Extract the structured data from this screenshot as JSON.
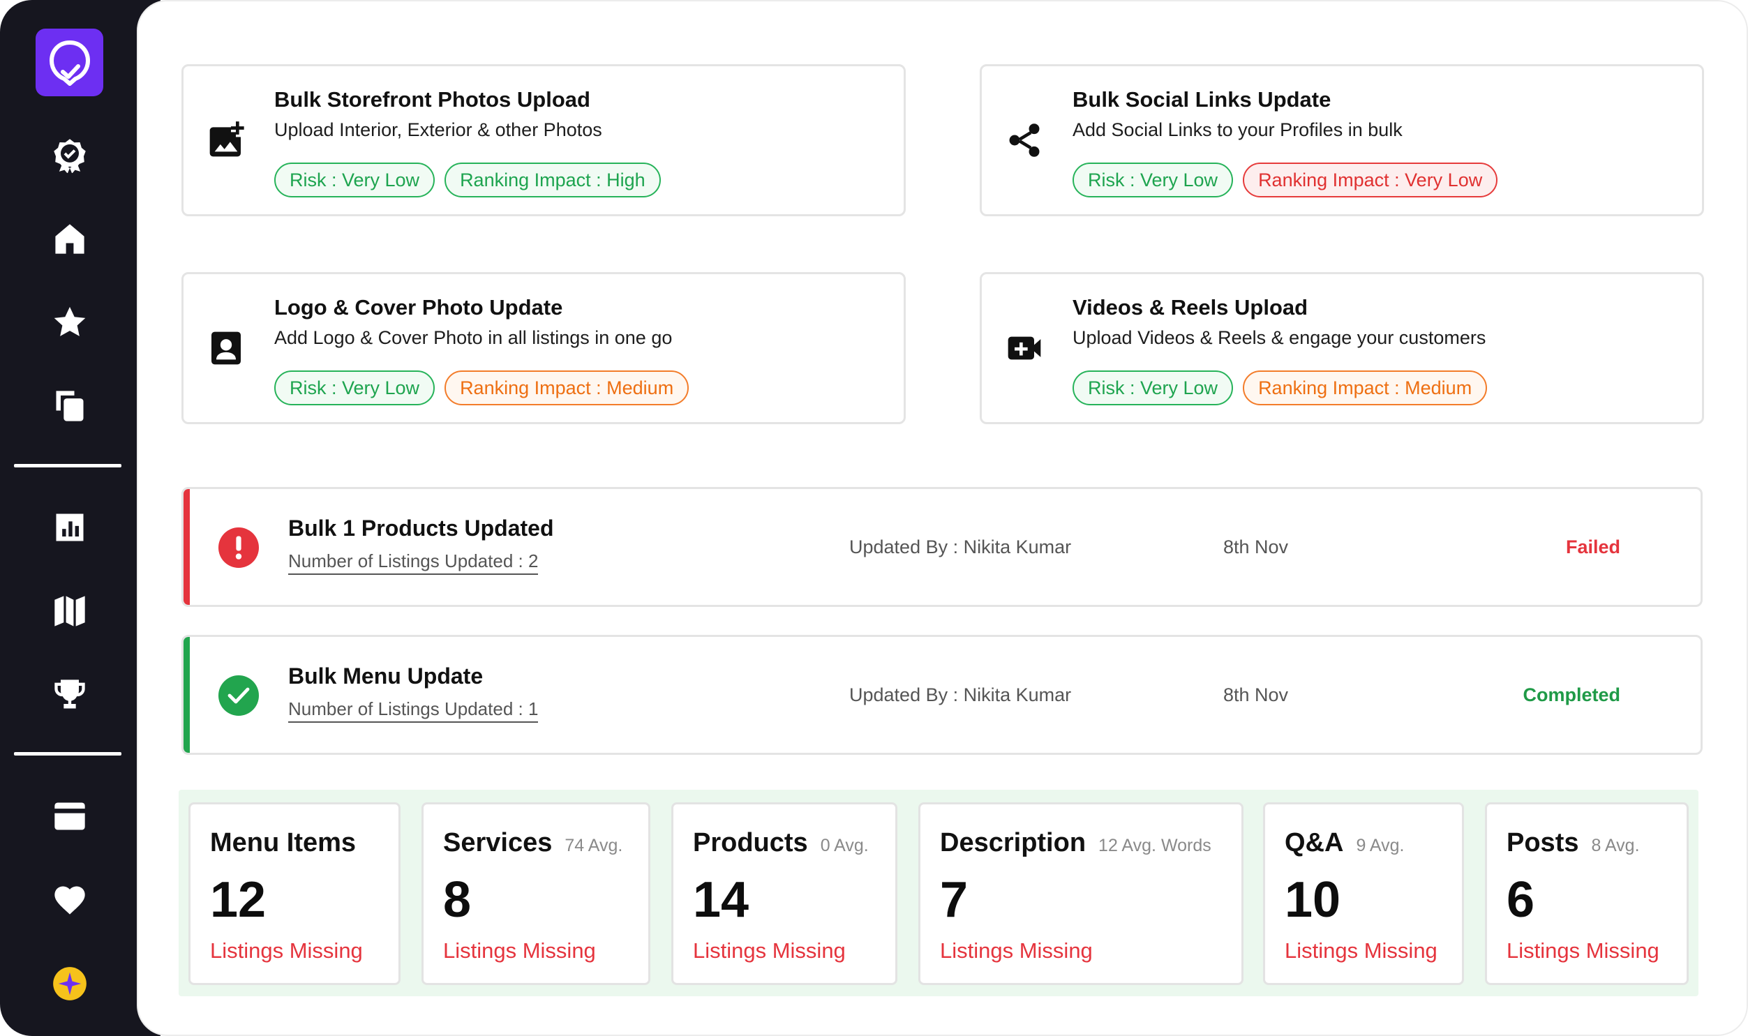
{
  "sidebar": {
    "items": [
      {
        "name": "badge-check-icon"
      },
      {
        "name": "home-icon"
      },
      {
        "name": "star-icon"
      },
      {
        "name": "copy-icon"
      },
      {
        "name": "bar-chart-icon"
      },
      {
        "name": "map-icon"
      },
      {
        "name": "trophy-icon"
      },
      {
        "name": "credit-card-icon"
      },
      {
        "name": "heart-icon"
      },
      {
        "name": "sparkle-icon"
      }
    ]
  },
  "features": [
    {
      "title": "Bulk Storefront Photos Upload",
      "desc": "Upload Interior, Exterior & other Photos",
      "risk": "Risk : Very Low",
      "impact": "Ranking Impact : High",
      "icon": "add-photo-icon"
    },
    {
      "title": "Bulk Social Links Update",
      "desc": "Add Social Links to your Profiles in bulk",
      "risk": "Risk : Very Low",
      "impact": "Ranking Impact : Very Low",
      "icon": "share-icon"
    },
    {
      "title": "Logo & Cover Photo Update",
      "desc": "Add Logo & Cover Photo in all listings in one go",
      "risk": "Risk : Very Low",
      "impact": "Ranking Impact : Medium",
      "icon": "portrait-icon"
    },
    {
      "title": "Videos & Reels Upload",
      "desc": "Upload Videos & Reels & engage your customers",
      "risk": "Risk : Very Low",
      "impact": "Ranking Impact : Medium",
      "icon": "video-add-icon"
    }
  ],
  "activities": [
    {
      "title": "Bulk 1 Products Updated",
      "sub": "Number of Listings Updated : 2",
      "updated_by": "Updated By : Nikita Kumar",
      "date": "8th Nov",
      "status": "Failed",
      "status_color": "#e5343d"
    },
    {
      "title": "Bulk Menu Update",
      "sub": "Number of Listings Updated : 1",
      "updated_by": "Updated By : Nikita Kumar",
      "date": "8th Nov",
      "status": "Completed",
      "status_color": "#1f9a47"
    }
  ],
  "metrics": [
    {
      "label": "Menu Items",
      "avg": "",
      "value": "12",
      "missing": "Listings Missing"
    },
    {
      "label": "Services",
      "avg": "74 Avg.",
      "value": "8",
      "missing": "Listings Missing"
    },
    {
      "label": "Products",
      "avg": "0 Avg.",
      "value": "14",
      "missing": "Listings Missing"
    },
    {
      "label": "Description",
      "avg": "12 Avg. Words",
      "value": "7",
      "missing": "Listings Missing"
    },
    {
      "label": "Q&A",
      "avg": "9 Avg.",
      "value": "10",
      "missing": "Listings Missing"
    },
    {
      "label": "Posts",
      "avg": "8 Avg.",
      "value": "6",
      "missing": "Listings Missing"
    }
  ],
  "colors": {
    "sidebar_bg": "#16161f",
    "brand": "#6d2ff2",
    "green": "#1ea44f",
    "orange": "#ee6f12",
    "red": "#e03131"
  }
}
